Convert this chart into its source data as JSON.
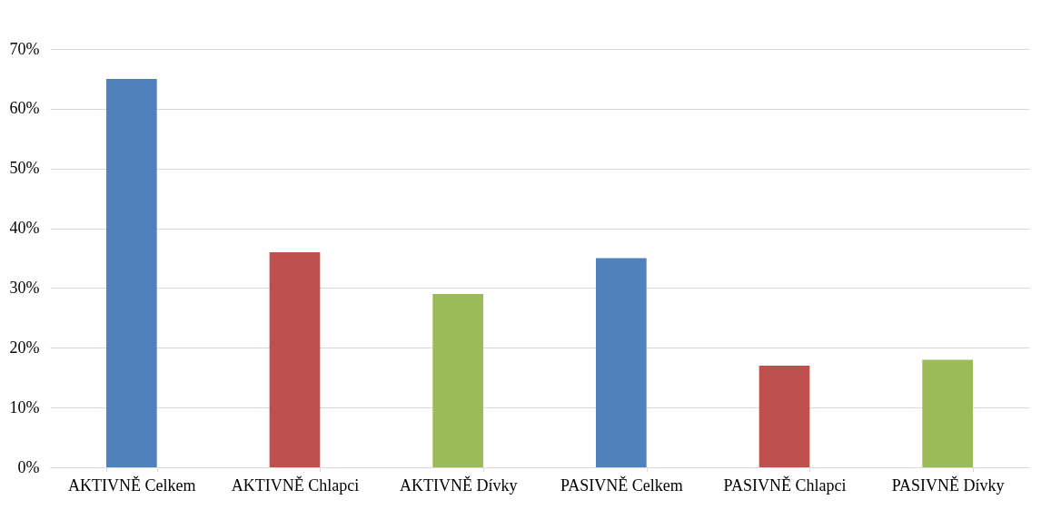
{
  "chart_data": {
    "type": "bar",
    "categories": [
      "AKTIVNĚ Celkem",
      "AKTIVNĚ Chlapci",
      "AKTIVNĚ Dívky",
      "PASIVNĚ Celkem",
      "PASIVNĚ Chlapci",
      "PASIVNĚ Dívky"
    ],
    "values": [
      65,
      36,
      29,
      35,
      17,
      18
    ],
    "colors": [
      "#4f81bd",
      "#c0504d",
      "#9bbb59",
      "#4f81bd",
      "#c0504d",
      "#9bbb59"
    ],
    "ylim": [
      0,
      70
    ],
    "yticks": [
      {
        "value": 0,
        "label": "0%"
      },
      {
        "value": 10,
        "label": "10%"
      },
      {
        "value": 20,
        "label": "20%"
      },
      {
        "value": 30,
        "label": "30%"
      },
      {
        "value": 40,
        "label": "40%"
      },
      {
        "value": 50,
        "label": "50%"
      },
      {
        "value": 60,
        "label": "60%"
      },
      {
        "value": 70,
        "label": "70%"
      }
    ],
    "grid": "y"
  }
}
